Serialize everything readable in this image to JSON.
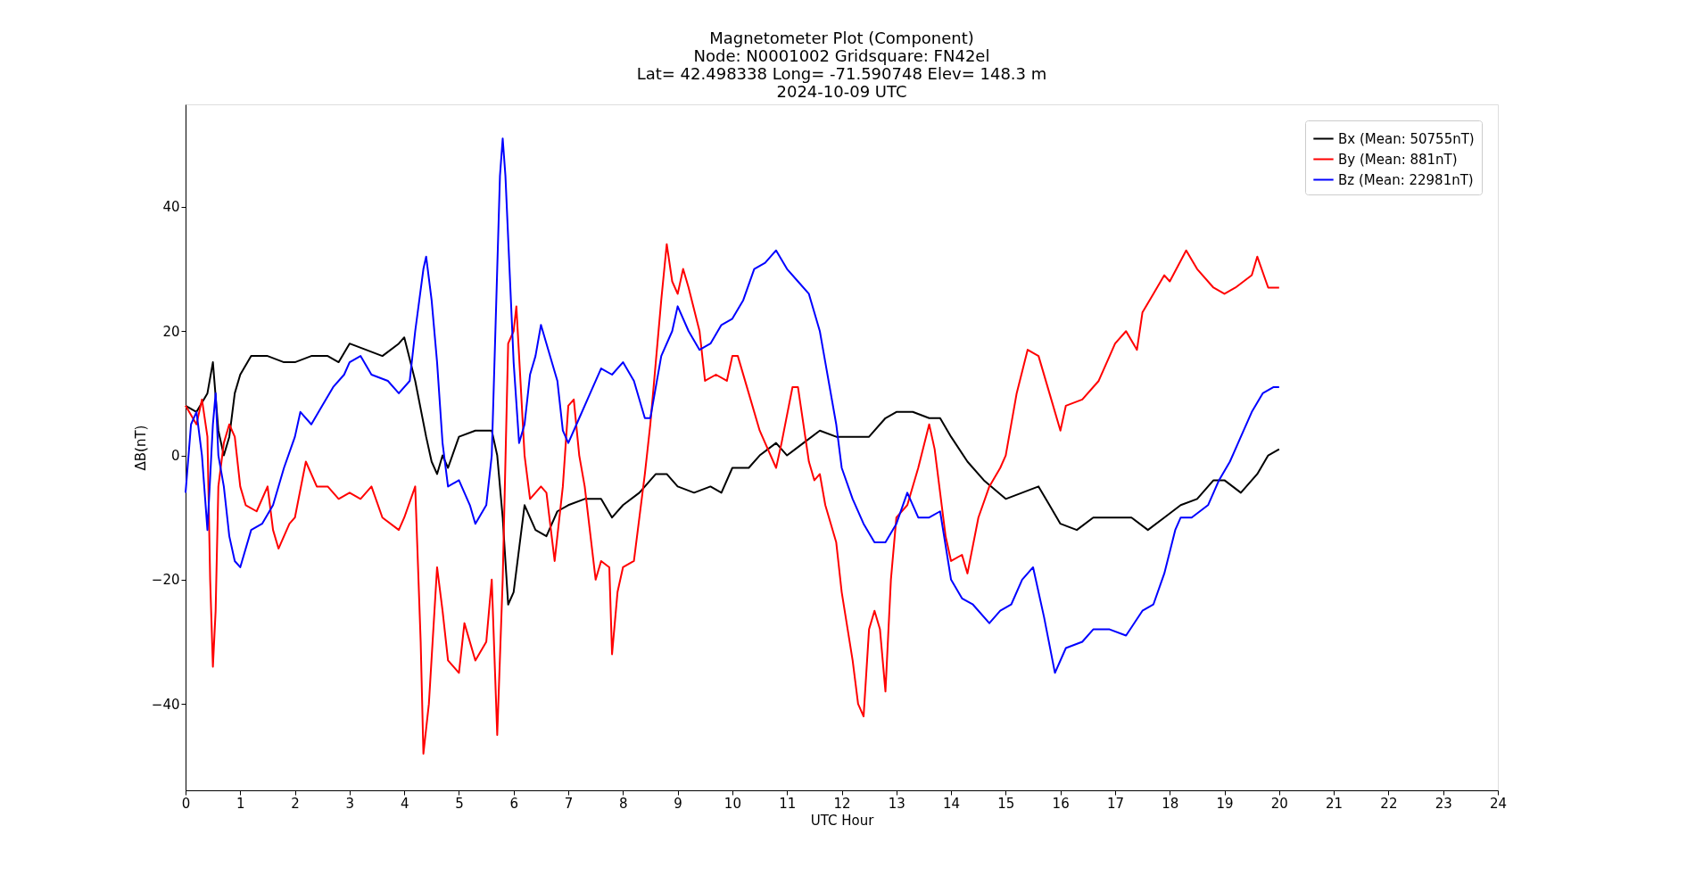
{
  "chart_data": {
    "type": "line",
    "title": "Magnetometer Plot (Component)\nNode:  N0001002     Gridsquare:  FN42el\nLat= 42.498338    Long= -71.590748    Elev= 148.3 m\n2024-10-09  UTC",
    "xlabel": "UTC Hour",
    "ylabel": "ΔB(nT)",
    "xlim": [
      0,
      24
    ],
    "xticks": [
      0,
      1,
      2,
      3,
      4,
      5,
      6,
      7,
      8,
      9,
      10,
      11,
      12,
      13,
      14,
      15,
      16,
      17,
      18,
      19,
      20,
      21,
      22,
      23,
      24
    ],
    "ylim": [
      -53.9,
      56.5
    ],
    "yticks": [
      -40,
      -20,
      0,
      20,
      40
    ],
    "grid": false,
    "legend": "top right",
    "line_style": "solid",
    "marker": "none",
    "series": [
      {
        "name": "Bx (Mean: 50755nT)",
        "color": "#000000",
        "x": [
          0,
          0.2,
          0.4,
          0.5,
          0.6,
          0.7,
          0.8,
          0.9,
          1.0,
          1.2,
          1.5,
          1.8,
          2.0,
          2.3,
          2.6,
          2.8,
          3.0,
          3.3,
          3.6,
          3.9,
          4.0,
          4.2,
          4.4,
          4.5,
          4.6,
          4.7,
          4.8,
          5.0,
          5.3,
          5.6,
          5.7,
          5.8,
          5.9,
          6.0,
          6.1,
          6.2,
          6.4,
          6.6,
          6.8,
          7.0,
          7.3,
          7.6,
          7.8,
          8.0,
          8.3,
          8.6,
          8.8,
          9.0,
          9.3,
          9.6,
          9.8,
          10.0,
          10.3,
          10.5,
          10.8,
          11.0,
          11.3,
          11.6,
          11.9,
          12.2,
          12.5,
          12.8,
          13.0,
          13.3,
          13.6,
          13.8,
          14.0,
          14.3,
          14.6,
          15.0,
          15.3,
          15.6,
          15.8,
          16.0,
          16.3,
          16.6,
          17.0,
          17.3,
          17.6,
          17.9,
          18.2,
          18.5,
          18.8,
          19.0,
          19.3,
          19.6,
          19.8,
          20.0
        ],
        "values": [
          8,
          7,
          10,
          15,
          4,
          0,
          3,
          10,
          13,
          16,
          16,
          15,
          15,
          16,
          16,
          15,
          18,
          17,
          16,
          18,
          19,
          12,
          3,
          -1,
          -3,
          0,
          -2,
          3,
          4,
          4,
          0,
          -10,
          -24,
          -22,
          -15,
          -8,
          -12,
          -13,
          -9,
          -8,
          -7,
          -7,
          -10,
          -8,
          -6,
          -3,
          -3,
          -5,
          -6,
          -5,
          -6,
          -2,
          -2,
          0,
          2,
          0,
          2,
          4,
          3,
          3,
          3,
          6,
          7,
          7,
          6,
          6,
          3,
          -1,
          -4,
          -7,
          -6,
          -5,
          -8,
          -11,
          -12,
          -10,
          -10,
          -10,
          -12,
          -10,
          -8,
          -7,
          -4,
          -4,
          -6,
          -3,
          0,
          1
        ]
      },
      {
        "name": "By (Mean: 881nT)",
        "color": "#ff0000",
        "x": [
          0,
          0.2,
          0.3,
          0.4,
          0.45,
          0.5,
          0.55,
          0.6,
          0.7,
          0.8,
          0.9,
          1.0,
          1.1,
          1.3,
          1.5,
          1.6,
          1.7,
          1.9,
          2.0,
          2.2,
          2.4,
          2.6,
          2.8,
          3.0,
          3.2,
          3.4,
          3.6,
          3.9,
          4.0,
          4.2,
          4.3,
          4.35,
          4.45,
          4.6,
          4.7,
          4.8,
          5.0,
          5.1,
          5.3,
          5.5,
          5.6,
          5.7,
          5.8,
          5.9,
          6.0,
          6.05,
          6.2,
          6.3,
          6.5,
          6.6,
          6.75,
          6.9,
          7.0,
          7.1,
          7.2,
          7.3,
          7.5,
          7.6,
          7.75,
          7.8,
          7.9,
          8.0,
          8.2,
          8.4,
          8.5,
          8.7,
          8.8,
          8.9,
          9.0,
          9.1,
          9.2,
          9.4,
          9.5,
          9.7,
          9.9,
          10.0,
          10.1,
          10.3,
          10.5,
          10.6,
          10.8,
          10.9,
          11.1,
          11.2,
          11.4,
          11.5,
          11.6,
          11.7,
          11.9,
          12.0,
          12.2,
          12.3,
          12.4,
          12.5,
          12.6,
          12.7,
          12.8,
          12.9,
          13.0,
          13.2,
          13.4,
          13.6,
          13.7,
          13.9,
          14.0,
          14.2,
          14.3,
          14.5,
          14.7,
          14.9,
          15.0,
          15.2,
          15.4,
          15.6,
          15.8,
          16.0,
          16.1,
          16.4,
          16.7,
          16.9,
          17.0,
          17.2,
          17.4,
          17.5,
          17.7,
          17.9,
          18.0,
          18.3,
          18.5,
          18.8,
          19.0,
          19.2,
          19.5,
          19.6,
          19.8,
          20.0
        ],
        "values": [
          8,
          5,
          9,
          3,
          -20,
          -34,
          -25,
          -5,
          2,
          5,
          3,
          -5,
          -8,
          -9,
          -5,
          -12,
          -15,
          -11,
          -10,
          -1,
          -5,
          -5,
          -7,
          -6,
          -7,
          -5,
          -10,
          -12,
          -10,
          -5,
          -30,
          -48,
          -40,
          -18,
          -25,
          -33,
          -35,
          -27,
          -33,
          -30,
          -20,
          -45,
          -20,
          18,
          20,
          24,
          0,
          -7,
          -5,
          -6,
          -17,
          -5,
          8,
          9,
          0,
          -5,
          -20,
          -17,
          -18,
          -32,
          -22,
          -18,
          -17,
          -3,
          5,
          25,
          34,
          28,
          26,
          30,
          27,
          20,
          12,
          13,
          12,
          16,
          16,
          10,
          4,
          2,
          -2,
          2,
          11,
          11,
          -1,
          -4,
          -3,
          -8,
          -14,
          -22,
          -33,
          -40,
          -42,
          -28,
          -25,
          -28,
          -38,
          -20,
          -10,
          -8,
          -2,
          5,
          1,
          -13,
          -17,
          -16,
          -19,
          -10,
          -5,
          -2,
          0,
          10,
          17,
          16,
          10,
          4,
          8,
          9,
          12,
          16,
          18,
          20,
          17,
          23,
          26,
          29,
          28,
          33,
          30,
          27,
          26,
          27,
          29,
          32,
          27,
          27
        ]
      },
      {
        "name": "Bz (Mean: 22981nT)",
        "color": "#0000ff",
        "x": [
          0,
          0.1,
          0.2,
          0.3,
          0.4,
          0.5,
          0.55,
          0.6,
          0.7,
          0.8,
          0.9,
          1.0,
          1.2,
          1.4,
          1.6,
          1.8,
          2.0,
          2.1,
          2.3,
          2.5,
          2.7,
          2.9,
          3.0,
          3.2,
          3.4,
          3.7,
          3.9,
          4.1,
          4.2,
          4.35,
          4.4,
          4.5,
          4.6,
          4.7,
          4.8,
          5.0,
          5.2,
          5.3,
          5.5,
          5.6,
          5.7,
          5.75,
          5.8,
          5.85,
          5.9,
          6.0,
          6.1,
          6.2,
          6.3,
          6.4,
          6.5,
          6.6,
          6.8,
          6.9,
          7.0,
          7.2,
          7.4,
          7.6,
          7.8,
          8.0,
          8.2,
          8.4,
          8.5,
          8.7,
          8.9,
          9.0,
          9.2,
          9.4,
          9.6,
          9.8,
          10.0,
          10.2,
          10.4,
          10.6,
          10.8,
          11.0,
          11.2,
          11.4,
          11.6,
          11.7,
          11.9,
          12.0,
          12.2,
          12.4,
          12.6,
          12.8,
          13.0,
          13.2,
          13.4,
          13.6,
          13.8,
          14.0,
          14.2,
          14.4,
          14.7,
          14.9,
          15.1,
          15.3,
          15.5,
          15.7,
          15.9,
          16.1,
          16.4,
          16.6,
          16.9,
          17.2,
          17.5,
          17.7,
          17.9,
          18.1,
          18.2,
          18.4,
          18.7,
          18.9,
          19.1,
          19.3,
          19.5,
          19.7,
          19.9,
          20.0
        ],
        "values": [
          -6,
          5,
          7,
          0,
          -12,
          5,
          10,
          0,
          -5,
          -13,
          -17,
          -18,
          -12,
          -11,
          -8,
          -2,
          3,
          7,
          5,
          8,
          11,
          13,
          15,
          16,
          13,
          12,
          10,
          12,
          20,
          30,
          32,
          25,
          15,
          2,
          -5,
          -4,
          -8,
          -11,
          -8,
          0,
          30,
          45,
          51,
          45,
          35,
          15,
          2,
          5,
          13,
          16,
          21,
          18,
          12,
          4,
          2,
          6,
          10,
          14,
          13,
          15,
          12,
          6,
          6,
          16,
          20,
          24,
          20,
          17,
          18,
          21,
          22,
          25,
          30,
          31,
          33,
          30,
          28,
          26,
          20,
          15,
          5,
          -2,
          -7,
          -11,
          -14,
          -14,
          -11,
          -6,
          -10,
          -10,
          -9,
          -20,
          -23,
          -24,
          -27,
          -25,
          -24,
          -20,
          -18,
          -26,
          -35,
          -31,
          -30,
          -28,
          -28,
          -29,
          -25,
          -24,
          -19,
          -12,
          -10,
          -10,
          -8,
          -4,
          -1,
          3,
          7,
          10,
          11,
          11
        ]
      }
    ]
  }
}
